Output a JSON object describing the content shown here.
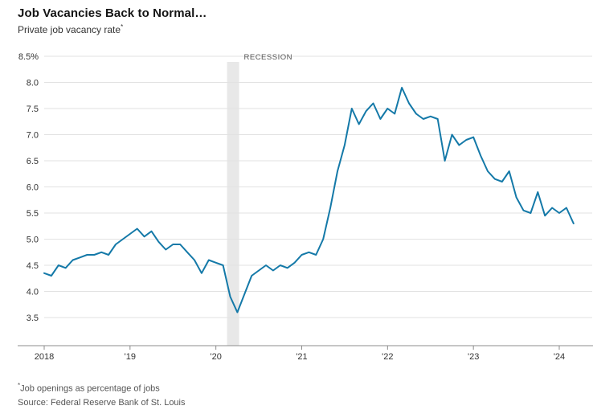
{
  "header": {
    "title": "Job Vacancies Back to Normal…",
    "subtitle": "Private job vacancy rate",
    "subtitle_sup": "*"
  },
  "footer": {
    "footnote_sup": "*",
    "footnote": "Job openings as percentage of jobs",
    "source": "Source: Federal Reserve Bank of St. Louis"
  },
  "chart_data": {
    "type": "line",
    "title": "Job Vacancies Back to Normal…",
    "subtitle": "Private job vacancy rate*",
    "unit": "%",
    "x_start": "2018-01",
    "frequency": "monthly",
    "x_tick_labels": [
      "2018",
      "'19",
      "'20",
      "'21",
      "'22",
      "'23",
      "'24"
    ],
    "y_ticks": [
      8.5,
      8.0,
      7.5,
      7.0,
      6.5,
      6.0,
      5.5,
      5.0,
      4.5,
      4.0,
      3.5
    ],
    "y_tick_labels": [
      "8.5%",
      "8.0",
      "7.5",
      "7.0",
      "6.5",
      "6.0",
      "5.5",
      "5.0",
      "4.5",
      "4.0",
      "3.5"
    ],
    "ylim": [
      3.5,
      8.5
    ],
    "grid": true,
    "legend": false,
    "recession": {
      "label": "RECESSION",
      "start_year": 2020.13,
      "end_year": 2020.27
    },
    "series": [
      {
        "name": "Private job vacancy rate",
        "color": "#1479a8",
        "values": [
          4.35,
          4.3,
          4.5,
          4.45,
          4.6,
          4.65,
          4.7,
          4.7,
          4.75,
          4.7,
          4.9,
          5.0,
          5.1,
          5.2,
          5.05,
          5.15,
          4.95,
          4.8,
          4.9,
          4.9,
          4.75,
          4.6,
          4.35,
          4.6,
          4.55,
          4.5,
          3.9,
          3.6,
          3.95,
          4.3,
          4.4,
          4.5,
          4.4,
          4.5,
          4.45,
          4.55,
          4.7,
          4.75,
          4.7,
          5.0,
          5.6,
          6.3,
          6.8,
          7.5,
          7.2,
          7.45,
          7.6,
          7.3,
          7.5,
          7.4,
          7.9,
          7.6,
          7.4,
          7.3,
          7.35,
          7.3,
          6.5,
          7.0,
          6.8,
          6.9,
          6.95,
          6.6,
          6.3,
          6.15,
          6.1,
          6.3,
          5.8,
          5.55,
          5.5,
          5.9,
          5.45,
          5.6,
          5.5,
          5.6,
          5.3
        ]
      }
    ],
    "colors": {
      "line": "#1479a8",
      "gridline": "#e2e2e2",
      "axis": "#8c8c8c",
      "recession_band": "#e8e8e8",
      "tick_label": "#333333",
      "recession_label": "#555555"
    }
  }
}
